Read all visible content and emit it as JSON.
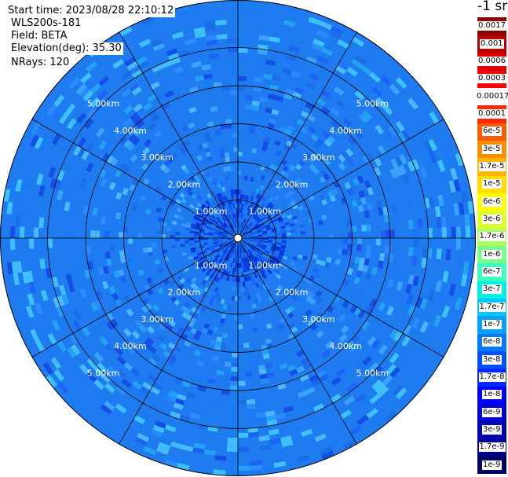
{
  "header": {
    "start_time": "Start time: 2023/08/28 22:10:12",
    "instrument": "WLS200s-181",
    "field": "Field: BETA",
    "elevation": "Elevation(deg): 35.30",
    "nrays": "NRays: 120"
  },
  "chart_data": {
    "type": "heatmap",
    "projection": "polar",
    "field": "BETA",
    "nrays": 120,
    "elevation_deg": 35.3,
    "range_ring_labels": [
      "1.00km",
      "2.00km",
      "3.00km",
      "4.00km",
      "5.00km"
    ],
    "range_rings_km": [
      1,
      2,
      3,
      4,
      5
    ],
    "max_range_km": 6.25,
    "spoke_angles_deg": [
      0,
      30,
      60,
      90,
      120,
      150,
      180,
      210,
      240,
      270,
      300,
      330
    ],
    "grid": true,
    "colorbar": {
      "units": "-1 sr",
      "position": "right",
      "levels": [
        {
          "label": "1e-9",
          "color": "#000064"
        },
        {
          "label": "1.7e-9",
          "color": "#00008c"
        },
        {
          "label": "3e-9",
          "color": "#0000b4"
        },
        {
          "label": "6e-9",
          "color": "#0000dc"
        },
        {
          "label": "1e-8",
          "color": "#0000ff"
        },
        {
          "label": "1.7e-8",
          "color": "#0028ff"
        },
        {
          "label": "3e-8",
          "color": "#0050ff"
        },
        {
          "label": "6e-8",
          "color": "#0078ff"
        },
        {
          "label": "1e-7",
          "color": "#00a0ff"
        },
        {
          "label": "1.7e-7",
          "color": "#00c8ff"
        },
        {
          "label": "3e-7",
          "color": "#00f0e6"
        },
        {
          "label": "6e-7",
          "color": "#3cffbe"
        },
        {
          "label": "1e-6",
          "color": "#78ff8c"
        },
        {
          "label": "1.7e-6",
          "color": "#aaff5a"
        },
        {
          "label": "3e-6",
          "color": "#dcff28"
        },
        {
          "label": "6e-6",
          "color": "#ffff00"
        },
        {
          "label": "1e-5",
          "color": "#ffdc00"
        },
        {
          "label": "1.7e-5",
          "color": "#ffb400"
        },
        {
          "label": "3e-5",
          "color": "#ff8c00"
        },
        {
          "label": "6e-5",
          "color": "#ff5a00"
        },
        {
          "label": "0.0001",
          "color": "#ff2800"
        },
        {
          "label": "0.00017",
          "color": "#ffffff"
        },
        {
          "label": "0.0003",
          "color": "#ff0000"
        },
        {
          "label": "0.0006",
          "color": "#dc0000"
        },
        {
          "label": "0.001",
          "color": "#b40000"
        },
        {
          "label": "0.0017",
          "color": "#8c0000"
        }
      ]
    }
  }
}
